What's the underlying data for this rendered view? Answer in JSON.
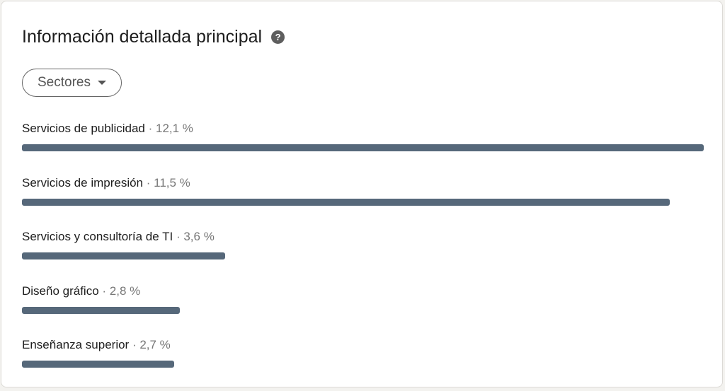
{
  "header": {
    "title": "Información detallada principal",
    "help_icon": "question-circle-icon"
  },
  "filter": {
    "label": "Sectores",
    "icon": "caret-down-icon"
  },
  "colors": {
    "bar": "#56687a",
    "text": "#1d1d1d",
    "muted": "#777777"
  },
  "items": [
    {
      "name": "Servicios de publicidad",
      "separator": " · ",
      "percent": "12,1 %",
      "value": 12.1
    },
    {
      "name": "Servicios de impresión",
      "separator": " · ",
      "percent": "11,5 %",
      "value": 11.5
    },
    {
      "name": "Servicios y consultoría de TI",
      "separator": " · ",
      "percent": "3,6 %",
      "value": 3.6
    },
    {
      "name": "Diseño gráfico",
      "separator": " · ",
      "percent": "2,8 %",
      "value": 2.8
    },
    {
      "name": "Enseñanza superior",
      "separator": " · ",
      "percent": "2,7 %",
      "value": 2.7
    }
  ]
}
